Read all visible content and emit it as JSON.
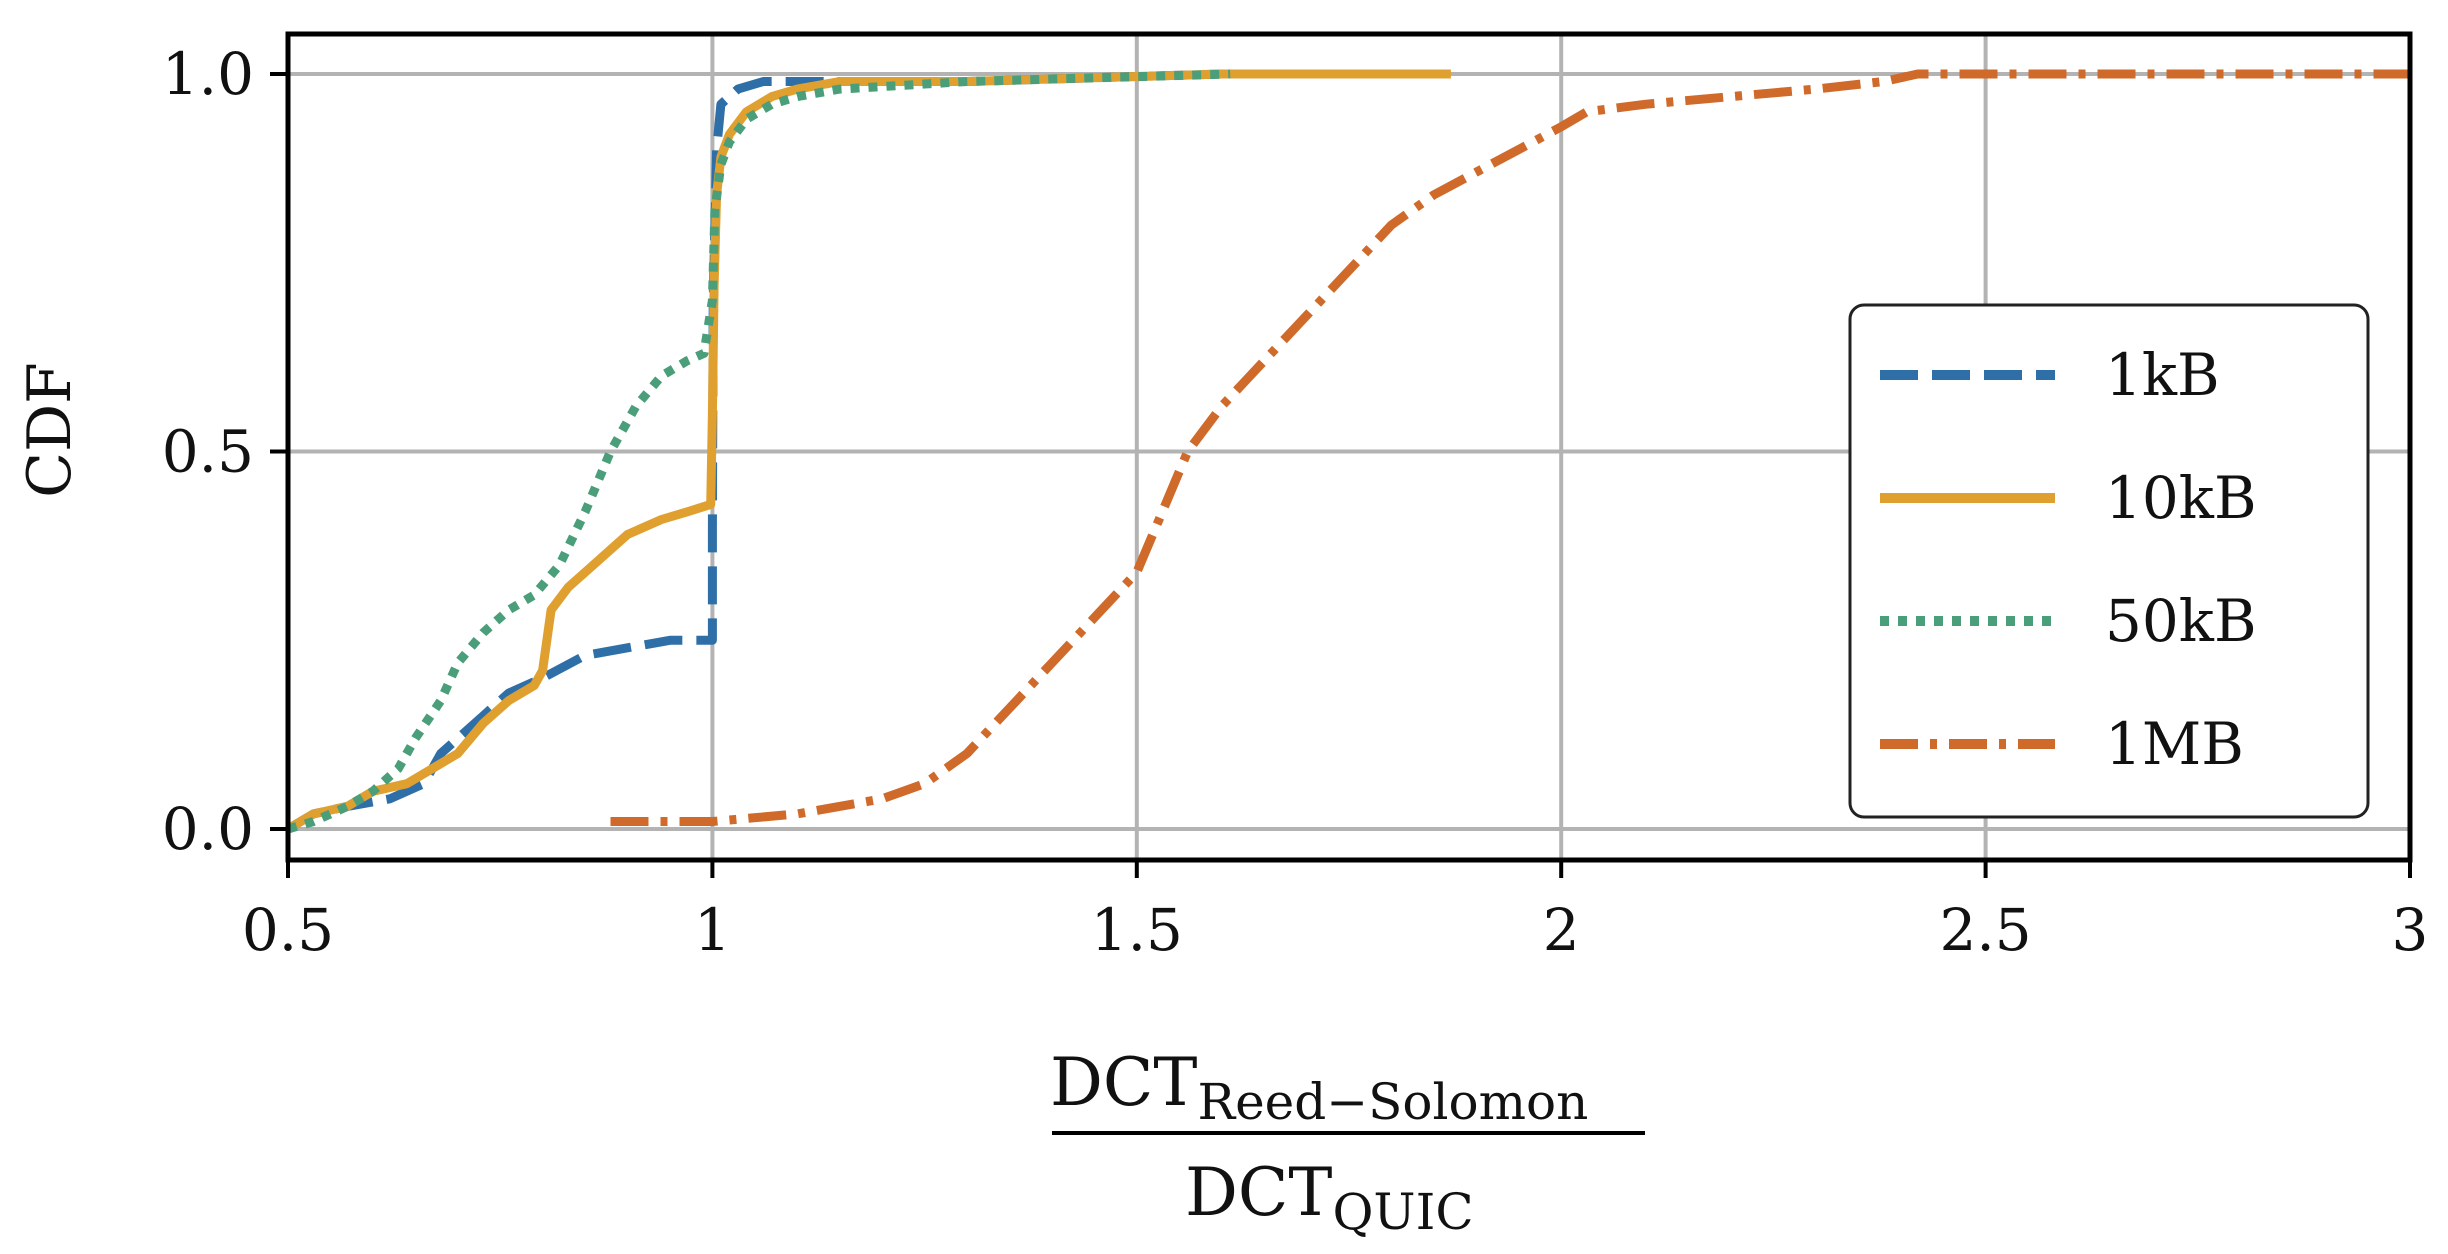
{
  "chart_data": {
    "type": "line",
    "ylabel": "CDF",
    "xlabel": {
      "numerator": "DCT",
      "numerator_sub": "Reed−Solomon",
      "denominator": "DCT",
      "denominator_sub": "QUIC"
    },
    "xlim": [
      0.5,
      3
    ],
    "ylim": [
      0,
      1
    ],
    "xticks": [
      "0.5",
      "1",
      "1.5",
      "2",
      "2.5",
      "3"
    ],
    "yticks": [
      "0.0",
      "0.5",
      "1.0"
    ],
    "grid": true,
    "legend_position": "center-right",
    "series": [
      {
        "name": "1kB",
        "color": "#2f6fa8",
        "dash": "dashed",
        "x": [
          0.5,
          0.53,
          0.57,
          0.62,
          0.66,
          0.68,
          0.7,
          0.73,
          0.76,
          0.8,
          0.85,
          0.9,
          0.95,
          1.0,
          1.0,
          1.001,
          1.005,
          1.01,
          1.03,
          1.06,
          1.1,
          1.3,
          1.6,
          1.87
        ],
        "y": [
          0.0,
          0.02,
          0.03,
          0.04,
          0.06,
          0.1,
          0.12,
          0.15,
          0.18,
          0.2,
          0.23,
          0.24,
          0.25,
          0.25,
          0.4,
          0.7,
          0.9,
          0.96,
          0.98,
          0.99,
          0.99,
          0.99,
          1.0,
          1.0
        ]
      },
      {
        "name": "10kB",
        "color": "#e0a030",
        "dash": "solid",
        "x": [
          0.5,
          0.53,
          0.57,
          0.6,
          0.64,
          0.67,
          0.7,
          0.73,
          0.76,
          0.79,
          0.8,
          0.81,
          0.83,
          0.86,
          0.9,
          0.94,
          0.97,
          0.998,
          1.0,
          1.002,
          1.005,
          1.01,
          1.02,
          1.04,
          1.07,
          1.1,
          1.15,
          1.3,
          1.6,
          1.87
        ],
        "y": [
          0.0,
          0.02,
          0.03,
          0.05,
          0.06,
          0.08,
          0.1,
          0.14,
          0.17,
          0.19,
          0.21,
          0.29,
          0.32,
          0.35,
          0.39,
          0.41,
          0.42,
          0.43,
          0.55,
          0.72,
          0.84,
          0.89,
          0.92,
          0.95,
          0.97,
          0.98,
          0.99,
          0.99,
          1.0,
          1.0
        ]
      },
      {
        "name": "50kB",
        "color": "#4a9e7a",
        "dash": "dotted",
        "x": [
          0.5,
          0.53,
          0.57,
          0.6,
          0.63,
          0.65,
          0.68,
          0.7,
          0.73,
          0.76,
          0.79,
          0.82,
          0.85,
          0.88,
          0.91,
          0.94,
          0.97,
          0.99,
          1.0,
          1.003,
          1.01,
          1.02,
          1.04,
          1.07,
          1.1,
          1.15,
          1.3,
          1.61
        ],
        "y": [
          0.0,
          0.01,
          0.03,
          0.05,
          0.08,
          0.12,
          0.17,
          0.22,
          0.26,
          0.29,
          0.31,
          0.35,
          0.42,
          0.5,
          0.56,
          0.6,
          0.62,
          0.63,
          0.7,
          0.82,
          0.88,
          0.91,
          0.94,
          0.96,
          0.97,
          0.98,
          0.99,
          1.0
        ]
      },
      {
        "name": "1MB",
        "color": "#cf6a2a",
        "dash": "dashdot",
        "x": [
          0.88,
          1.0,
          1.1,
          1.2,
          1.25,
          1.3,
          1.35,
          1.4,
          1.45,
          1.5,
          1.53,
          1.56,
          1.6,
          1.65,
          1.7,
          1.75,
          1.8,
          1.85,
          1.9,
          1.95,
          2.0,
          2.03,
          2.1,
          2.2,
          2.3,
          2.38,
          2.42,
          2.6,
          3.0
        ],
        "y": [
          0.01,
          0.01,
          0.02,
          0.04,
          0.06,
          0.1,
          0.16,
          0.22,
          0.28,
          0.34,
          0.42,
          0.5,
          0.56,
          0.62,
          0.68,
          0.74,
          0.8,
          0.84,
          0.87,
          0.9,
          0.93,
          0.95,
          0.96,
          0.97,
          0.98,
          0.99,
          1.0,
          1.0,
          1.0
        ]
      }
    ]
  }
}
